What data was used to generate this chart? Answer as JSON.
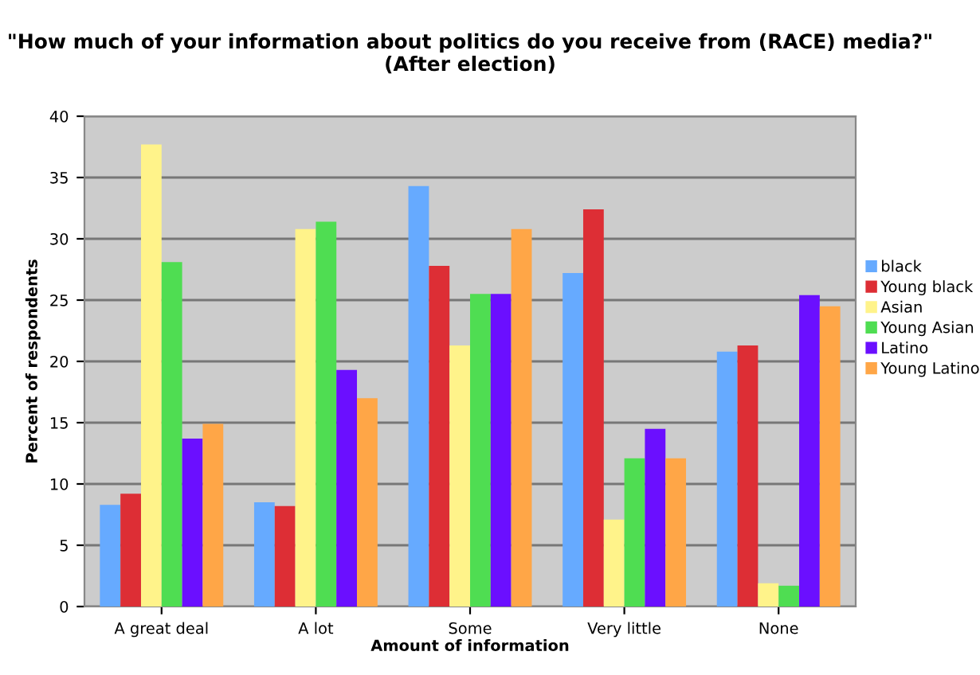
{
  "chart_data": {
    "type": "bar",
    "title": "\"How much of your information about politics do you receive from (RACE) media?\" (After election)",
    "xlabel": "Amount of information",
    "ylabel": "Percent of respondents",
    "categories": [
      "A great deal",
      "A lot",
      "Some",
      "Very little",
      "None"
    ],
    "series": [
      {
        "name": "black",
        "color": "#66aaff",
        "values": [
          8.3,
          8.5,
          34.3,
          27.2,
          20.8
        ]
      },
      {
        "name": "Young black",
        "color": "#dd2e35",
        "values": [
          9.2,
          8.2,
          27.8,
          32.4,
          21.3
        ]
      },
      {
        "name": "Asian",
        "color": "#fff38a",
        "values": [
          37.7,
          30.8,
          21.3,
          7.1,
          1.9
        ]
      },
      {
        "name": "Young Asian",
        "color": "#4fdd52",
        "values": [
          28.1,
          31.4,
          25.5,
          12.1,
          1.7
        ]
      },
      {
        "name": "Latino",
        "color": "#6b0fff",
        "values": [
          13.7,
          19.3,
          25.5,
          14.5,
          25.4
        ]
      },
      {
        "name": "Young Latino",
        "color": "#ffa647",
        "values": [
          14.9,
          17.0,
          30.8,
          12.1,
          24.5
        ]
      }
    ],
    "ylim": [
      0,
      40
    ],
    "yticks": [
      0,
      5,
      10,
      15,
      20,
      25,
      30,
      35,
      40
    ],
    "grid": "y",
    "legend": "right"
  }
}
